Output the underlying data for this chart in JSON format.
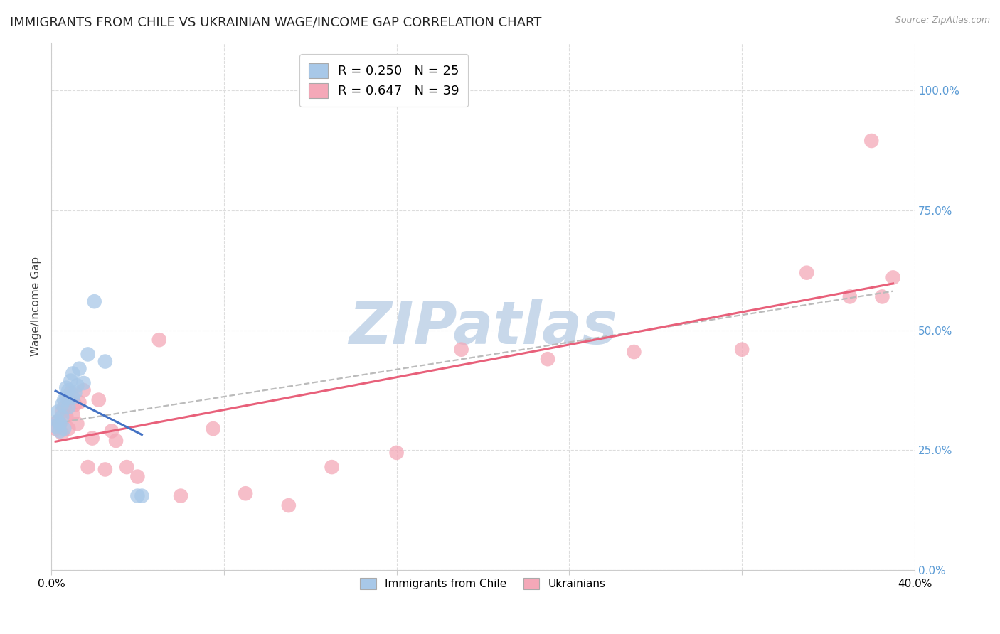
{
  "title": "IMMIGRANTS FROM CHILE VS UKRAINIAN WAGE/INCOME GAP CORRELATION CHART",
  "source": "Source: ZipAtlas.com",
  "ylabel": "Wage/Income Gap",
  "xlim": [
    0.0,
    0.4
  ],
  "ylim": [
    0.0,
    1.1
  ],
  "ytick_values": [
    0.0,
    0.25,
    0.5,
    0.75,
    1.0
  ],
  "xtick_values": [
    0.0,
    0.08,
    0.16,
    0.24,
    0.32,
    0.4
  ],
  "legend_entries": [
    {
      "label": "Immigrants from Chile",
      "R": "0.250",
      "N": "25",
      "color": "#a8c8e8"
    },
    {
      "label": "Ukrainians",
      "R": "0.647",
      "N": "39",
      "color": "#f4a8b8"
    }
  ],
  "chile_x": [
    0.002,
    0.003,
    0.003,
    0.004,
    0.004,
    0.005,
    0.005,
    0.006,
    0.006,
    0.007,
    0.007,
    0.008,
    0.008,
    0.009,
    0.01,
    0.01,
    0.011,
    0.012,
    0.013,
    0.015,
    0.017,
    0.02,
    0.025,
    0.04,
    0.042
  ],
  "chile_y": [
    0.3,
    0.31,
    0.33,
    0.29,
    0.305,
    0.32,
    0.345,
    0.295,
    0.355,
    0.38,
    0.36,
    0.34,
    0.375,
    0.395,
    0.36,
    0.41,
    0.37,
    0.385,
    0.42,
    0.39,
    0.45,
    0.56,
    0.435,
    0.155,
    0.155
  ],
  "ukraine_x": [
    0.002,
    0.003,
    0.004,
    0.005,
    0.005,
    0.006,
    0.007,
    0.008,
    0.008,
    0.009,
    0.01,
    0.011,
    0.012,
    0.013,
    0.015,
    0.017,
    0.019,
    0.022,
    0.025,
    0.028,
    0.03,
    0.035,
    0.04,
    0.05,
    0.06,
    0.075,
    0.09,
    0.11,
    0.13,
    0.16,
    0.19,
    0.23,
    0.27,
    0.32,
    0.35,
    0.37,
    0.38,
    0.385,
    0.39
  ],
  "ukraine_y": [
    0.295,
    0.31,
    0.305,
    0.33,
    0.285,
    0.34,
    0.32,
    0.295,
    0.355,
    0.37,
    0.325,
    0.345,
    0.305,
    0.35,
    0.375,
    0.215,
    0.275,
    0.355,
    0.21,
    0.29,
    0.27,
    0.215,
    0.195,
    0.48,
    0.155,
    0.295,
    0.16,
    0.135,
    0.215,
    0.245,
    0.46,
    0.44,
    0.455,
    0.46,
    0.62,
    0.57,
    0.895,
    0.57,
    0.61
  ],
  "chile_color": "#a8c8e8",
  "ukraine_color": "#f4a8b8",
  "chile_line_color": "#4472c4",
  "ukraine_line_color": "#e8607a",
  "trendline_dash_color": "#bbbbbb",
  "background_color": "#ffffff",
  "grid_color": "#dddddd",
  "title_fontsize": 13,
  "axis_label_fontsize": 11,
  "tick_fontsize": 11,
  "watermark_text": "ZIPatlas",
  "watermark_color": "#c8d8ea",
  "watermark_fontsize": 60,
  "right_tick_color": "#5b9bd5"
}
